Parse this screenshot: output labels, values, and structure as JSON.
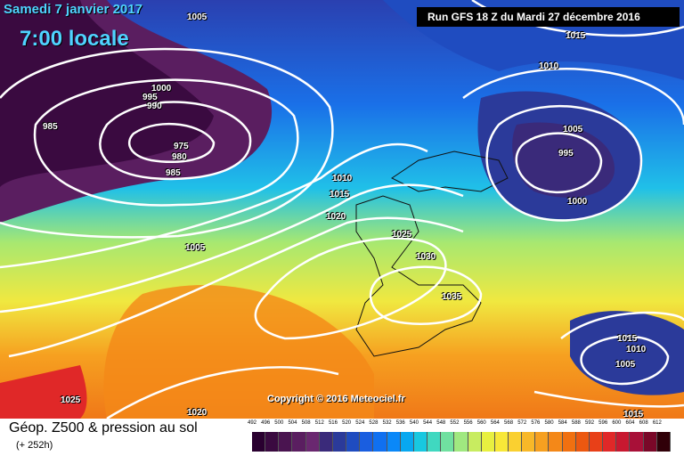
{
  "header": {
    "date": "Samedi 7 janvier 2017",
    "time": "7:00 locale",
    "run": "Run GFS 18 Z du Mardi 27 décembre 2016"
  },
  "copyright": "Copyright © 2016 Meteociel.fr",
  "isobars": [
    "1005",
    "1015",
    "1010",
    "1000",
    "995",
    "990",
    "985",
    "975",
    "980",
    "985",
    "1005",
    "995",
    "1000",
    "1010",
    "1015",
    "1020",
    "1025",
    "1030",
    "1035",
    "1005",
    "1015",
    "1010",
    "1005",
    "1025",
    "1020",
    "1015"
  ],
  "footer": {
    "title": "Géop. Z500 & pression au sol",
    "subtitle": "(+ 252h)"
  },
  "scale": {
    "values": [
      "492",
      "496",
      "500",
      "504",
      "508",
      "512",
      "516",
      "520",
      "524",
      "528",
      "532",
      "536",
      "540",
      "544",
      "548",
      "552",
      "556",
      "560",
      "564",
      "568",
      "572",
      "576",
      "580",
      "584",
      "588",
      "592",
      "596",
      "600",
      "604",
      "608",
      "612"
    ],
    "colors": [
      "#2a0030",
      "#3a0a40",
      "#4a1450",
      "#5a1e60",
      "#6a2870",
      "#3a2a7a",
      "#2b3a9a",
      "#1f4cc0",
      "#1a5ee0",
      "#1070f0",
      "#0a88f8",
      "#08a8f0",
      "#18c8e0",
      "#40d8c0",
      "#70e0a0",
      "#a0e880",
      "#c8ec60",
      "#e8f040",
      "#f8e838",
      "#fad030",
      "#f8b828",
      "#f6a020",
      "#f48818",
      "#f07010",
      "#ec5810",
      "#e84018",
      "#e02828",
      "#c81830",
      "#a81038",
      "#7a0828",
      "#300008"
    ]
  }
}
